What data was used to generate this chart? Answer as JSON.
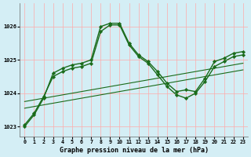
{
  "title": "Graphe pression niveau de la mer (hPa)",
  "bg_color": "#d4eef5",
  "grid_color": "#ffaaaa",
  "line_color": "#1a6b1a",
  "x_ticks": [
    0,
    1,
    2,
    3,
    4,
    5,
    6,
    7,
    8,
    9,
    10,
    11,
    12,
    13,
    14,
    15,
    16,
    17,
    18,
    19,
    20,
    21,
    22,
    23
  ],
  "ylim": [
    1022.7,
    1026.7
  ],
  "yticks": [
    1023,
    1024,
    1025,
    1026
  ],
  "series_markers": [
    [
      1023.0,
      1023.35,
      1023.85,
      1024.6,
      1024.75,
      1024.85,
      1024.9,
      1025.0,
      1026.0,
      1026.1,
      1026.1,
      1025.5,
      1025.15,
      1024.95,
      1024.65,
      1024.3,
      1024.05,
      1024.1,
      1024.05,
      1024.45,
      1024.95,
      1025.05,
      1025.2,
      1025.25
    ],
    [
      1023.05,
      1023.4,
      1023.9,
      1024.5,
      1024.65,
      1024.75,
      1024.8,
      1024.9,
      1025.85,
      1026.05,
      1026.05,
      1025.45,
      1025.1,
      1024.9,
      1024.55,
      1024.2,
      1023.95,
      1023.85,
      1024.0,
      1024.35,
      1024.8,
      1024.95,
      1025.1,
      1025.15
    ]
  ],
  "series_lines": [
    [
      1023.75,
      1023.8,
      1023.85,
      1023.9,
      1023.95,
      1024.0,
      1024.05,
      1024.1,
      1024.15,
      1024.2,
      1024.25,
      1024.3,
      1024.35,
      1024.4,
      1024.45,
      1024.5,
      1024.55,
      1024.6,
      1024.65,
      1024.7,
      1024.75,
      1024.8,
      1024.85,
      1024.9
    ],
    [
      1023.55,
      1023.6,
      1023.65,
      1023.7,
      1023.75,
      1023.8,
      1023.85,
      1023.9,
      1023.95,
      1024.0,
      1024.05,
      1024.1,
      1024.15,
      1024.2,
      1024.25,
      1024.3,
      1024.35,
      1024.4,
      1024.45,
      1024.5,
      1024.55,
      1024.6,
      1024.65,
      1024.7
    ]
  ],
  "marker": "D",
  "markersize": 2.2,
  "linewidth_marker": 1.0,
  "linewidth_line": 0.8
}
